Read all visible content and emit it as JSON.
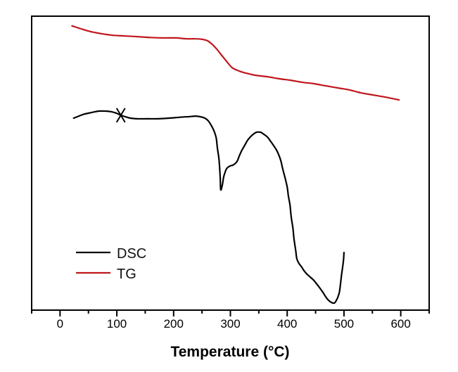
{
  "figure": {
    "background": "#ffffff",
    "frame_color": "#000000"
  },
  "chart_data": {
    "type": "line",
    "title": "",
    "xlabel": "Temperature (°C)",
    "ylabel": "",
    "grid": false,
    "x_axis": {
      "min": -50,
      "max": 650,
      "major_ticks": [
        0,
        100,
        200,
        300,
        400,
        500,
        600
      ],
      "major_tick_labels": [
        "0",
        "100",
        "200",
        "300",
        "400",
        "500",
        "600"
      ],
      "minor_ticks": [
        -50,
        50,
        150,
        250,
        350,
        450,
        550,
        650
      ]
    },
    "y_axis": {
      "min": 0,
      "max": 100,
      "ticks": [],
      "tick_labels": []
    },
    "legend": {
      "position": "lower-left",
      "entries": [
        {
          "label": "DSC",
          "color": "#000000"
        },
        {
          "label": "TG",
          "color": "#c0161c"
        }
      ]
    },
    "series": [
      {
        "name": "DSC",
        "color": "#000000",
        "points": [
          [
            24,
            65.3
          ],
          [
            33,
            66.0
          ],
          [
            43,
            66.7
          ],
          [
            55,
            67.2
          ],
          [
            68,
            67.7
          ],
          [
            80,
            67.7
          ],
          [
            90,
            67.5
          ],
          [
            99,
            67.0
          ],
          [
            107,
            66.3
          ],
          [
            115,
            65.8
          ],
          [
            124,
            65.3
          ],
          [
            136,
            65.1
          ],
          [
            154,
            65.1
          ],
          [
            173,
            65.1
          ],
          [
            192,
            65.3
          ],
          [
            210,
            65.6
          ],
          [
            226,
            65.8
          ],
          [
            239,
            66.0
          ],
          [
            247,
            65.8
          ],
          [
            255,
            65.3
          ],
          [
            261,
            64.4
          ],
          [
            266,
            62.9
          ],
          [
            271,
            61.0
          ],
          [
            275,
            58.6
          ],
          [
            277,
            55.3
          ],
          [
            280,
            51.0
          ],
          [
            282,
            45.2
          ],
          [
            283,
            40.9
          ],
          [
            286,
            42.8
          ],
          [
            288,
            45.2
          ],
          [
            291,
            47.1
          ],
          [
            294,
            48.3
          ],
          [
            299,
            49.0
          ],
          [
            304,
            49.3
          ],
          [
            308,
            49.8
          ],
          [
            312,
            50.7
          ],
          [
            316,
            52.6
          ],
          [
            320,
            54.3
          ],
          [
            325,
            56.0
          ],
          [
            330,
            57.7
          ],
          [
            335,
            58.9
          ],
          [
            340,
            59.8
          ],
          [
            346,
            60.5
          ],
          [
            353,
            60.5
          ],
          [
            359,
            59.8
          ],
          [
            365,
            58.9
          ],
          [
            371,
            57.4
          ],
          [
            376,
            56.0
          ],
          [
            381,
            54.5
          ],
          [
            385,
            52.9
          ],
          [
            389,
            50.7
          ],
          [
            392,
            48.1
          ],
          [
            396,
            45.2
          ],
          [
            400,
            41.9
          ],
          [
            402,
            39.0
          ],
          [
            405,
            35.6
          ],
          [
            407,
            31.8
          ],
          [
            410,
            28.0
          ],
          [
            412,
            24.2
          ],
          [
            415,
            20.3
          ],
          [
            417,
            17.5
          ],
          [
            421,
            15.8
          ],
          [
            425,
            14.8
          ],
          [
            429,
            13.6
          ],
          [
            434,
            12.4
          ],
          [
            439,
            11.5
          ],
          [
            446,
            10.3
          ],
          [
            452,
            8.9
          ],
          [
            458,
            7.4
          ],
          [
            463,
            6.0
          ],
          [
            468,
            4.5
          ],
          [
            473,
            3.3
          ],
          [
            478,
            2.6
          ],
          [
            483,
            2.4
          ],
          [
            486,
            3.1
          ],
          [
            489,
            4.3
          ],
          [
            492,
            6.2
          ],
          [
            494,
            9.1
          ],
          [
            496,
            12.4
          ],
          [
            499,
            16.7
          ],
          [
            500,
            19.6
          ]
        ]
      },
      {
        "name": "TG",
        "color": "#c0161c",
        "points": [
          [
            21,
            96.7
          ],
          [
            37,
            95.7
          ],
          [
            55,
            94.7
          ],
          [
            74,
            94.0
          ],
          [
            93,
            93.5
          ],
          [
            111,
            93.3
          ],
          [
            130,
            93.1
          ],
          [
            154,
            92.8
          ],
          [
            179,
            92.6
          ],
          [
            204,
            92.6
          ],
          [
            223,
            92.3
          ],
          [
            239,
            92.3
          ],
          [
            251,
            92.1
          ],
          [
            260,
            91.6
          ],
          [
            268,
            90.4
          ],
          [
            276,
            88.8
          ],
          [
            285,
            86.6
          ],
          [
            293,
            84.7
          ],
          [
            303,
            82.5
          ],
          [
            316,
            81.3
          ],
          [
            328,
            80.6
          ],
          [
            344,
            79.9
          ],
          [
            365,
            79.4
          ],
          [
            386,
            78.7
          ],
          [
            406,
            78.2
          ],
          [
            427,
            77.5
          ],
          [
            448,
            77.0
          ],
          [
            468,
            76.3
          ],
          [
            489,
            75.6
          ],
          [
            510,
            74.9
          ],
          [
            530,
            73.9
          ],
          [
            551,
            73.2
          ],
          [
            572,
            72.5
          ],
          [
            597,
            71.5
          ]
        ]
      }
    ],
    "marker": {
      "series": "DSC",
      "shape": "x",
      "x": 107,
      "y": 66.3
    }
  }
}
